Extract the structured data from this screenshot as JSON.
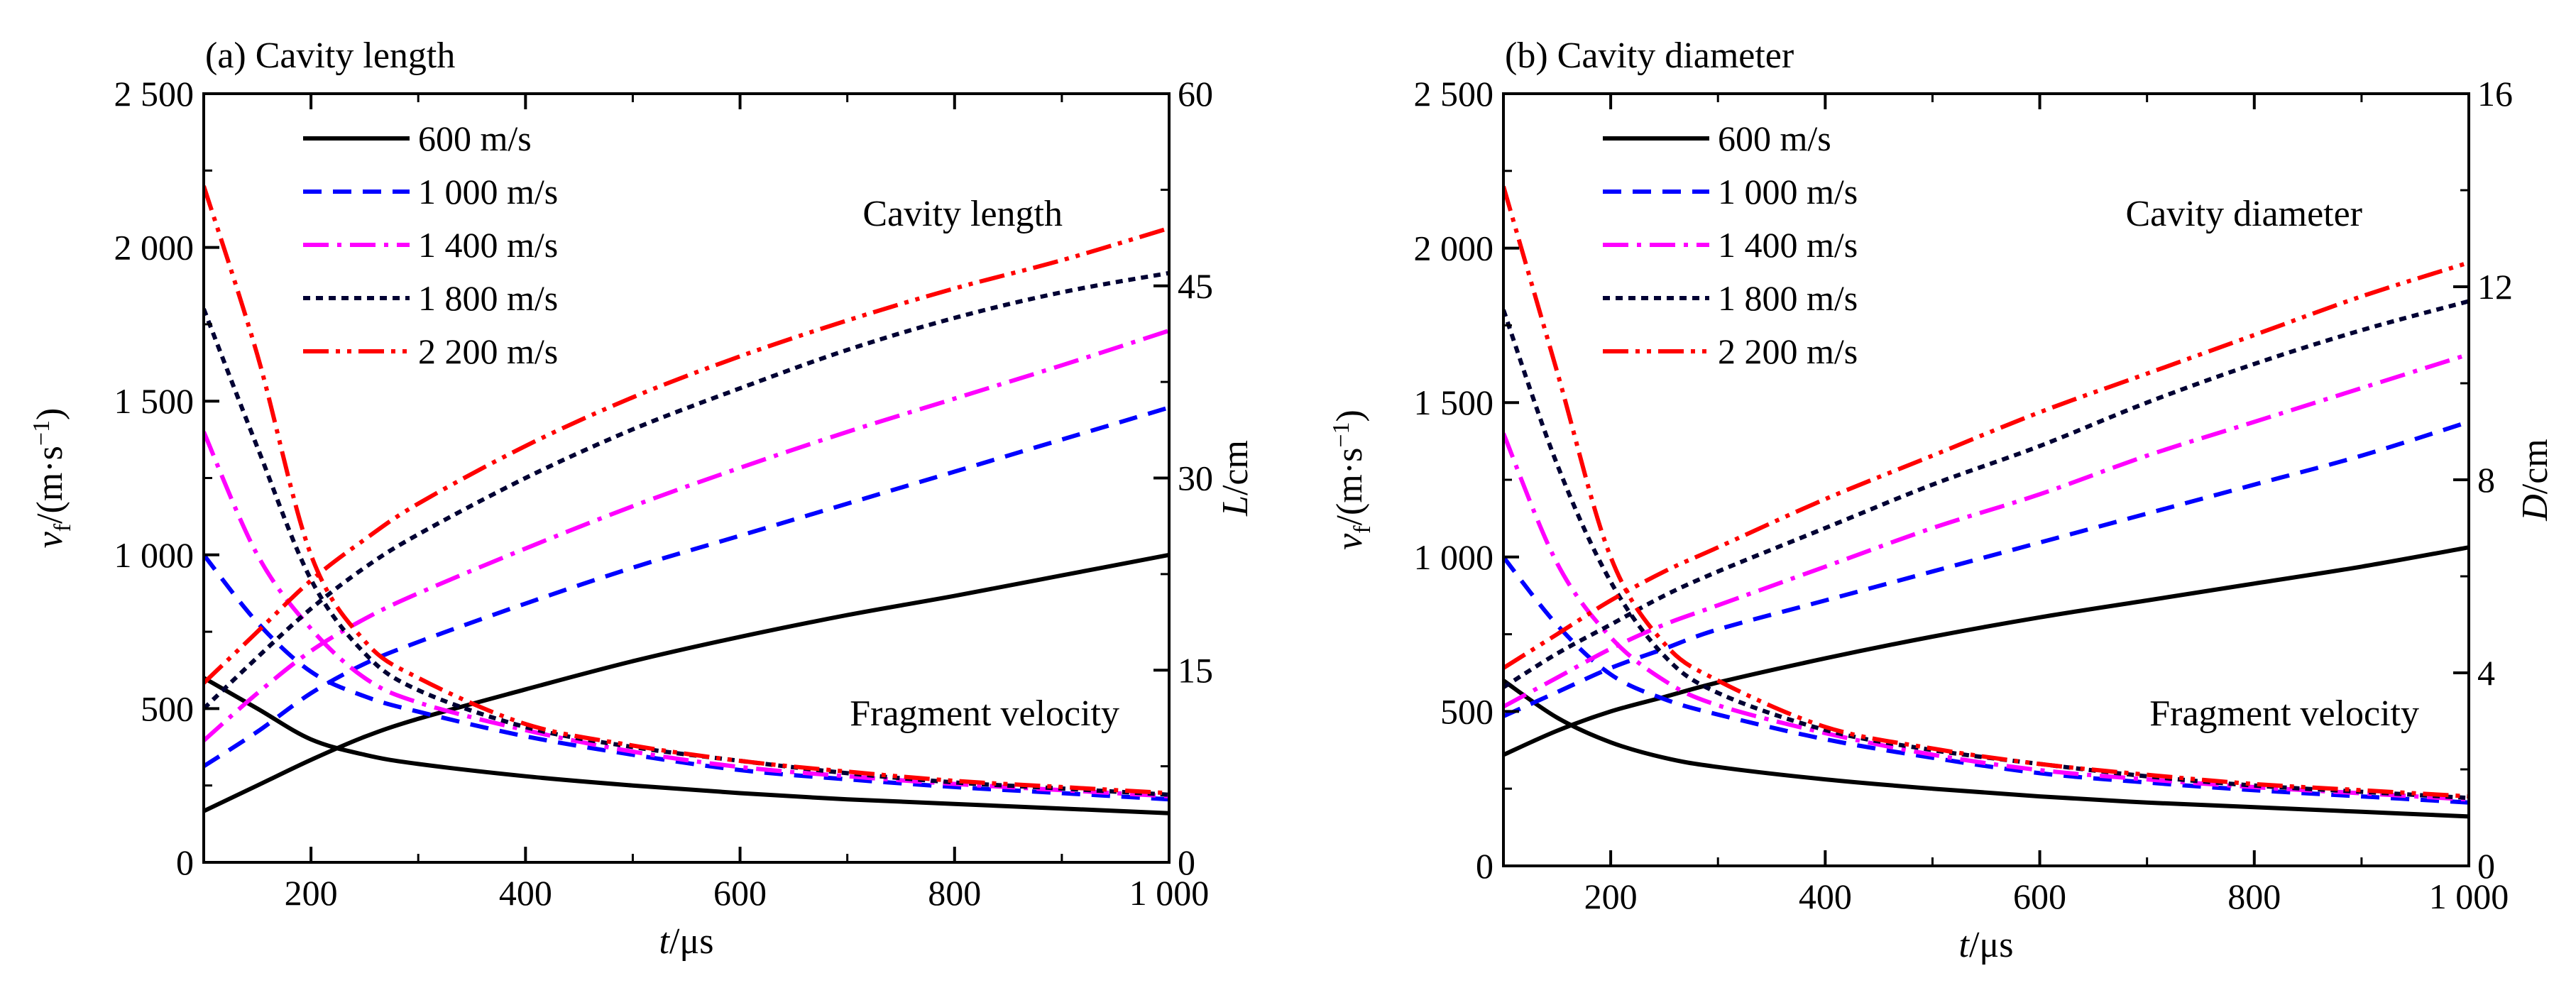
{
  "chart_data": [
    {
      "type": "line",
      "title": "(a) Cavity length",
      "xlabel_italic": "t",
      "xlabel_unit": "/μs",
      "ylabel_var": "v",
      "ylabel_sub": "f",
      "ylabel_unit_pre": "/(m·s",
      "ylabel_unit_sup": "−1",
      "ylabel_unit_post": ")",
      "y2label_italic": "L",
      "y2label_unit": "/cm",
      "xlim": [
        100,
        1000
      ],
      "ylim": [
        0,
        2500
      ],
      "y2lim": [
        0,
        60
      ],
      "xticks": [
        200,
        400,
        600,
        800,
        1000
      ],
      "xtick_labels": [
        "200",
        "400",
        "600",
        "800",
        "1 000"
      ],
      "yticks": [
        0,
        500,
        1000,
        1500,
        2000,
        2500
      ],
      "ytick_labels": [
        "0",
        "500",
        "1 000",
        "1 500",
        "2 000",
        "2 500"
      ],
      "y2ticks": [
        0,
        15,
        30,
        45,
        60
      ],
      "y2tick_labels": [
        "0",
        "15",
        "30",
        "45",
        "60"
      ],
      "annotations": {
        "upper": "Cavity length",
        "lower": "Fragment velocity"
      },
      "x": [
        100,
        150,
        200,
        250,
        300,
        400,
        500,
        600,
        700,
        800,
        900,
        1000
      ],
      "series": [
        {
          "name": "600 m/s",
          "color": "#000000",
          "dash": "none",
          "velocity": [
            600,
            500,
            400,
            350,
            320,
            280,
            250,
            225,
            205,
            190,
            175,
            160
          ],
          "length": [
            4.0,
            6.0,
            8.0,
            9.8,
            11.2,
            13.5,
            15.7,
            17.6,
            19.3,
            20.8,
            22.4,
            24.0
          ]
        },
        {
          "name": "1 000 m/s",
          "color": "#0000ff",
          "dash": "26 16",
          "velocity": [
            1000,
            780,
            620,
            540,
            490,
            410,
            350,
            300,
            270,
            245,
            225,
            205
          ],
          "length": [
            7.5,
            10.2,
            13.2,
            15.5,
            17.2,
            20.2,
            23.0,
            25.5,
            28.0,
            30.5,
            33.0,
            35.5
          ]
        },
        {
          "name": "1 400 m/s",
          "color": "#ff00ff",
          "dash": "36 12 6 12",
          "velocity": [
            1400,
            1000,
            760,
            600,
            520,
            430,
            360,
            310,
            280,
            255,
            235,
            215
          ],
          "length": [
            9.5,
            13.2,
            16.5,
            19.0,
            21.0,
            24.5,
            27.8,
            30.8,
            33.6,
            36.2,
            38.8,
            41.5
          ]
        },
        {
          "name": "1 800 m/s",
          "color": "#000033",
          "dash": "10 8",
          "velocity": [
            1800,
            1350,
            920,
            680,
            560,
            440,
            375,
            330,
            290,
            260,
            240,
            220
          ],
          "length": [
            12.0,
            16.0,
            19.8,
            23.0,
            25.6,
            30.0,
            33.8,
            37.0,
            40.0,
            42.5,
            44.5,
            46.0
          ]
        },
        {
          "name": "2 200 m/s",
          "color": "#ff0000",
          "dash": "36 10 6 10 6 10",
          "velocity": [
            2200,
            1650,
            1000,
            720,
            600,
            450,
            380,
            330,
            295,
            265,
            245,
            225
          ],
          "length": [
            14.0,
            18.0,
            22.0,
            25.2,
            28.0,
            32.5,
            36.3,
            39.5,
            42.3,
            44.8,
            47.0,
            49.5
          ]
        }
      ]
    },
    {
      "type": "line",
      "title": "(b) Cavity diameter",
      "xlabel_italic": "t",
      "xlabel_unit": "/μs",
      "ylabel_var": "v",
      "ylabel_sub": "f",
      "ylabel_unit_pre": "/(m·s",
      "ylabel_unit_sup": "−1",
      "ylabel_unit_post": ")",
      "y2label_italic": "D",
      "y2label_unit": "/cm",
      "xlim": [
        100,
        1000
      ],
      "ylim": [
        0,
        2500
      ],
      "y2lim": [
        0,
        16
      ],
      "xticks": [
        200,
        400,
        600,
        800,
        1000
      ],
      "xtick_labels": [
        "200",
        "400",
        "600",
        "800",
        "1 000"
      ],
      "yticks": [
        0,
        500,
        1000,
        1500,
        2000,
        2500
      ],
      "ytick_labels": [
        "0",
        "500",
        "1 000",
        "1 500",
        "2 000",
        "2 500"
      ],
      "y2ticks": [
        0,
        4,
        8,
        12,
        16
      ],
      "y2tick_labels": [
        "0",
        "4",
        "8",
        "12",
        "16"
      ],
      "annotations": {
        "upper": "Cavity diameter",
        "lower": "Fragment velocity"
      },
      "x": [
        100,
        150,
        200,
        250,
        300,
        400,
        500,
        600,
        700,
        800,
        900,
        1000
      ],
      "series": [
        {
          "name": "600 m/s",
          "color": "#000000",
          "dash": "none",
          "velocity": [
            600,
            480,
            400,
            350,
            320,
            280,
            250,
            225,
            205,
            190,
            175,
            160
          ],
          "diameter": [
            2.3,
            2.8,
            3.2,
            3.5,
            3.8,
            4.3,
            4.75,
            5.15,
            5.5,
            5.85,
            6.2,
            6.6
          ]
        },
        {
          "name": "1 000 m/s",
          "color": "#0000ff",
          "dash": "26 16",
          "velocity": [
            1000,
            780,
            620,
            540,
            490,
            410,
            350,
            300,
            270,
            245,
            225,
            205
          ],
          "diameter": [
            3.1,
            3.6,
            4.1,
            4.5,
            4.9,
            5.5,
            6.1,
            6.7,
            7.3,
            7.9,
            8.5,
            9.2
          ]
        },
        {
          "name": "1 400 m/s",
          "color": "#ff00ff",
          "dash": "36 12 6 12",
          "velocity": [
            1400,
            980,
            740,
            600,
            520,
            430,
            360,
            310,
            280,
            255,
            235,
            215
          ],
          "diameter": [
            3.3,
            3.9,
            4.5,
            5.0,
            5.4,
            6.2,
            7.0,
            7.7,
            8.5,
            9.2,
            9.9,
            10.6
          ]
        },
        {
          "name": "1 800 m/s",
          "color": "#000033",
          "dash": "10 8",
          "velocity": [
            1800,
            1300,
            920,
            680,
            560,
            440,
            375,
            330,
            290,
            260,
            240,
            220
          ],
          "diameter": [
            3.7,
            4.4,
            5.0,
            5.6,
            6.1,
            7.0,
            7.9,
            8.7,
            9.6,
            10.4,
            11.1,
            11.7
          ]
        },
        {
          "name": "2 200 m/s",
          "color": "#ff0000",
          "dash": "36 10 6 10 6 10",
          "velocity": [
            2200,
            1600,
            1000,
            720,
            600,
            450,
            380,
            330,
            295,
            265,
            245,
            225
          ],
          "diameter": [
            4.1,
            4.8,
            5.5,
            6.1,
            6.6,
            7.6,
            8.5,
            9.4,
            10.2,
            11.0,
            11.8,
            12.5
          ]
        }
      ]
    }
  ]
}
